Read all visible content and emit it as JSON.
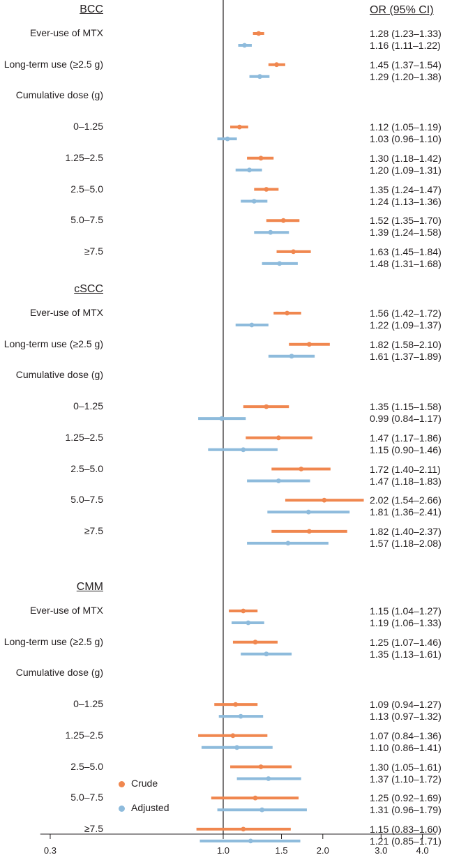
{
  "chart_data": {
    "type": "forest",
    "header": "OR (95% CI)",
    "xscale": "log",
    "xlim": [
      0.28,
      4.4
    ],
    "reference_line": 1.0,
    "ticks": [
      {
        "value": 0.3,
        "label": "0.3"
      },
      {
        "value": 1.0,
        "label": "1.0"
      },
      {
        "value": 1.5,
        "label": "1.5"
      },
      {
        "value": 2.0,
        "label": "2.0"
      },
      {
        "value": 3.0,
        "label": "3.0"
      },
      {
        "value": 4.0,
        "label": "4.0"
      }
    ],
    "legend": [
      {
        "name": "Crude",
        "color": "#f0874f"
      },
      {
        "name": "Adjusted",
        "color": "#8ebbdc"
      }
    ],
    "sections": [
      {
        "title": "BCC",
        "rows": [
          {
            "label": "Ever-use of MTX",
            "crude": {
              "or": 1.28,
              "lo": 1.23,
              "hi": 1.33,
              "text": "1.28 (1.23–1.33)"
            },
            "adjusted": {
              "or": 1.16,
              "lo": 1.11,
              "hi": 1.22,
              "text": "1.16 (1.11–1.22)"
            }
          },
          {
            "label": "Long-term use (≥2.5 g)",
            "crude": {
              "or": 1.45,
              "lo": 1.37,
              "hi": 1.54,
              "text": "1.45 (1.37–1.54)"
            },
            "adjusted": {
              "or": 1.29,
              "lo": 1.2,
              "hi": 1.38,
              "text": "1.29 (1.20–1.38)"
            }
          },
          {
            "label": "Cumulative dose (g)",
            "header": true
          },
          {
            "label": "0–1.25",
            "crude": {
              "or": 1.12,
              "lo": 1.05,
              "hi": 1.19,
              "text": "1.12 (1.05–1.19)"
            },
            "adjusted": {
              "or": 1.03,
              "lo": 0.96,
              "hi": 1.1,
              "text": "1.03 (0.96–1.10)"
            }
          },
          {
            "label": "1.25–2.5",
            "crude": {
              "or": 1.3,
              "lo": 1.18,
              "hi": 1.42,
              "text": "1.30 (1.18–1.42)"
            },
            "adjusted": {
              "or": 1.2,
              "lo": 1.09,
              "hi": 1.31,
              "text": "1.20 (1.09–1.31)"
            }
          },
          {
            "label": "2.5–5.0",
            "crude": {
              "or": 1.35,
              "lo": 1.24,
              "hi": 1.47,
              "text": "1.35 (1.24–1.47)"
            },
            "adjusted": {
              "or": 1.24,
              "lo": 1.13,
              "hi": 1.36,
              "text": "1.24 (1.13–1.36)"
            }
          },
          {
            "label": "5.0–7.5",
            "crude": {
              "or": 1.52,
              "lo": 1.35,
              "hi": 1.7,
              "text": "1.52 (1.35–1.70)"
            },
            "adjusted": {
              "or": 1.39,
              "lo": 1.24,
              "hi": 1.58,
              "text": "1.39 (1.24–1.58)"
            }
          },
          {
            "label": "≥7.5",
            "crude": {
              "or": 1.63,
              "lo": 1.45,
              "hi": 1.84,
              "text": "1.63 (1.45–1.84)"
            },
            "adjusted": {
              "or": 1.48,
              "lo": 1.31,
              "hi": 1.68,
              "text": "1.48 (1.31–1.68)"
            }
          }
        ]
      },
      {
        "title": "cSCC",
        "rows": [
          {
            "label": "Ever-use of MTX",
            "crude": {
              "or": 1.56,
              "lo": 1.42,
              "hi": 1.72,
              "text": "1.56 (1.42–1.72)"
            },
            "adjusted": {
              "or": 1.22,
              "lo": 1.09,
              "hi": 1.37,
              "text": "1.22 (1.09–1.37)"
            }
          },
          {
            "label": "Long-term use (≥2.5 g)",
            "crude": {
              "or": 1.82,
              "lo": 1.58,
              "hi": 2.1,
              "text": "1.82 (1.58–2.10)"
            },
            "adjusted": {
              "or": 1.61,
              "lo": 1.37,
              "hi": 1.89,
              "text": "1.61 (1.37–1.89)"
            }
          },
          {
            "label": "Cumulative dose (g)",
            "header": true
          },
          {
            "label": "0–1.25",
            "crude": {
              "or": 1.35,
              "lo": 1.15,
              "hi": 1.58,
              "text": "1.35 (1.15–1.58)"
            },
            "adjusted": {
              "or": 0.99,
              "lo": 0.84,
              "hi": 1.17,
              "text": "0.99 (0.84–1.17)"
            }
          },
          {
            "label": "1.25–2.5",
            "crude": {
              "or": 1.47,
              "lo": 1.17,
              "hi": 1.86,
              "text": "1.47 (1.17–1.86)"
            },
            "adjusted": {
              "or": 1.15,
              "lo": 0.9,
              "hi": 1.46,
              "text": "1.15 (0.90–1.46)"
            }
          },
          {
            "label": "2.5–5.0",
            "crude": {
              "or": 1.72,
              "lo": 1.4,
              "hi": 2.11,
              "text": "1.72 (1.40–2.11)"
            },
            "adjusted": {
              "or": 1.47,
              "lo": 1.18,
              "hi": 1.83,
              "text": "1.47 (1.18–1.83)"
            }
          },
          {
            "label": "5.0–7.5",
            "crude": {
              "or": 2.02,
              "lo": 1.54,
              "hi": 2.66,
              "text": "2.02 (1.54–2.66)"
            },
            "adjusted": {
              "or": 1.81,
              "lo": 1.36,
              "hi": 2.41,
              "text": "1.81 (1.36–2.41)"
            }
          },
          {
            "label": "≥7.5",
            "crude": {
              "or": 1.82,
              "lo": 1.4,
              "hi": 2.37,
              "text": "1.82 (1.40–2.37)"
            },
            "adjusted": {
              "or": 1.57,
              "lo": 1.18,
              "hi": 2.08,
              "text": "1.57 (1.18–2.08)"
            }
          }
        ]
      },
      {
        "title": "CMM",
        "rows": [
          {
            "label": "Ever-use of MTX",
            "crude": {
              "or": 1.15,
              "lo": 1.04,
              "hi": 1.27,
              "text": "1.15 (1.04–1.27)"
            },
            "adjusted": {
              "or": 1.19,
              "lo": 1.06,
              "hi": 1.33,
              "text": "1.19 (1.06–1.33)"
            }
          },
          {
            "label": "Long-term use (≥2.5 g)",
            "crude": {
              "or": 1.25,
              "lo": 1.07,
              "hi": 1.46,
              "text": "1.25 (1.07–1.46)"
            },
            "adjusted": {
              "or": 1.35,
              "lo": 1.13,
              "hi": 1.61,
              "text": "1.35 (1.13–1.61)"
            }
          },
          {
            "label": "Cumulative dose (g)",
            "header": true
          },
          {
            "label": "0–1.25",
            "crude": {
              "or": 1.09,
              "lo": 0.94,
              "hi": 1.27,
              "text": "1.09 (0.94–1.27)"
            },
            "adjusted": {
              "or": 1.13,
              "lo": 0.97,
              "hi": 1.32,
              "text": "1.13 (0.97–1.32)"
            }
          },
          {
            "label": "1.25–2.5",
            "crude": {
              "or": 1.07,
              "lo": 0.84,
              "hi": 1.36,
              "text": "1.07 (0.84–1.36)"
            },
            "adjusted": {
              "or": 1.1,
              "lo": 0.86,
              "hi": 1.41,
              "text": "1.10 (0.86–1.41)"
            }
          },
          {
            "label": "2.5–5.0",
            "crude": {
              "or": 1.3,
              "lo": 1.05,
              "hi": 1.61,
              "text": "1.30 (1.05–1.61)"
            },
            "adjusted": {
              "or": 1.37,
              "lo": 1.1,
              "hi": 1.72,
              "text": "1.37 (1.10–1.72)"
            }
          },
          {
            "label": "5.0–7.5",
            "crude": {
              "or": 1.25,
              "lo": 0.92,
              "hi": 1.69,
              "text": "1.25 (0.92–1.69)"
            },
            "adjusted": {
              "or": 1.31,
              "lo": 0.96,
              "hi": 1.79,
              "text": "1.31 (0.96–1.79)"
            }
          },
          {
            "label": "≥7.5",
            "crude": {
              "or": 1.15,
              "lo": 0.83,
              "hi": 1.6,
              "text": "1.15 (0.83–1.60)"
            },
            "adjusted": {
              "or": 1.21,
              "lo": 0.85,
              "hi": 1.71,
              "text": "1.21 (0.85–1.71)"
            }
          }
        ]
      }
    ]
  }
}
